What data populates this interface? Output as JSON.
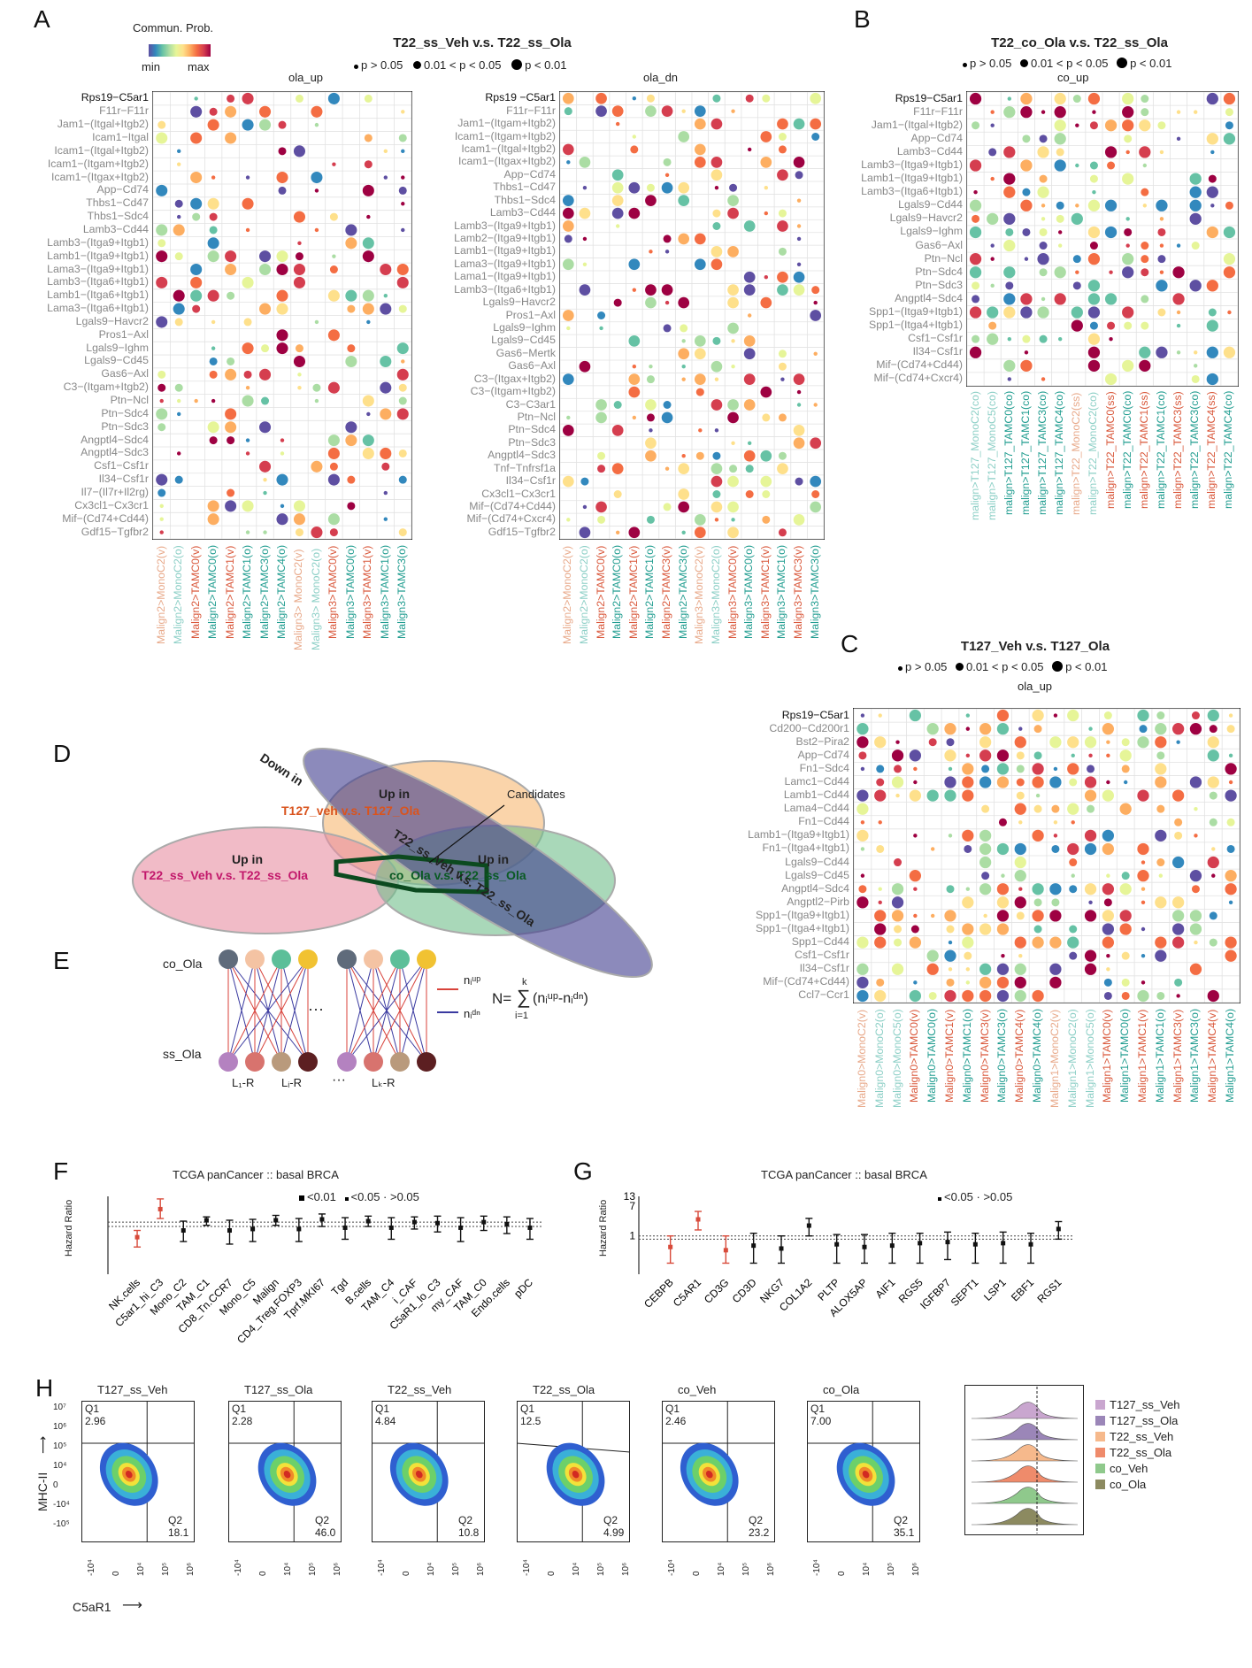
{
  "panels": {
    "A": {
      "label": "A",
      "title": "T22_ss_Veh v.s. T22_ss_Ola",
      "legend_pvals": [
        "p > 0.05",
        "0.01 < p < 0.05",
        "p < 0.01"
      ],
      "colorbar": {
        "title": "Commun. Prob.",
        "min_label": "min",
        "max_label": "max"
      },
      "left": {
        "subtitle": "ola_up",
        "rows": [
          "Rps19−C5ar1",
          "F11r−F11r",
          "Jam1−(Itgal+Itgb2)",
          "Icam1−Itgal",
          "Icam1−(Itgal+Itgb2)",
          "Icam1−(Itgam+Itgb2)",
          "Icam1−(Itgax+Itgb2)",
          "App−Cd74",
          "Thbs1−Cd47",
          "Thbs1−Sdc4",
          "Lamb3−Cd44",
          "Lamb3−(Itga9+Itgb1)",
          "Lamb1−(Itga9+Itgb1)",
          "Lama3−(Itga9+Itgb1)",
          "Lamb3−(Itga6+Itgb1)",
          "Lamb1−(Itga6+Itgb1)",
          "Lama3−(Itga6+Itgb1)",
          "Lgals9−Havcr2",
          "Pros1−Axl",
          "Lgals9−Ighm",
          "Lgals9−Cd45",
          "Gas6−Axl",
          "C3−(Itgam+Itgb2)",
          "Ptn−Ncl",
          "Ptn−Sdc4",
          "Ptn−Sdc3",
          "Angptl4−Sdc4",
          "Angptl4−Sdc3",
          "Csf1−Csf1r",
          "Il34−Csf1r",
          "Il7−(Il7r+Il2rg)",
          "Cx3cl1−Cx3cr1",
          "Mif−(Cd74+Cd44)",
          "Gdf15−Tgfbr2"
        ],
        "cols": [
          "Malign2>MonoC2(v)",
          "Malign2>MonoC2(o)",
          "Malign2>TAMC0(v)",
          "Malign2>TAMC0(o)",
          "Malign2>TAMC1(v)",
          "Malign2>TAMC1(o)",
          "Malign2>TAMC3(o)",
          "Malign2>TAMC4(o)",
          "Malign3> MonoC2(v)",
          "Malign3> MonoC2(o)",
          "Malign3>TAMC0(v)",
          "Malign3>TAMC0(o)",
          "Malign3>TAMC1(v)",
          "Malign3>TAMC1(o)",
          "Malign3>TAMC3(o)"
        ]
      },
      "right": {
        "subtitle": "ola_dn",
        "rows": [
          "Rps19 −C5ar1",
          "F11r−F11r",
          "Jam1−(Itgam+Itgb2)",
          "Icam1−(Itgam+Itgb2)",
          "Icam1−(Itgal+Itgb2)",
          "Icam1−(Itgax+Itgb2)",
          "App−Cd74",
          "Thbs1−Cd47",
          "Thbs1−Sdc4",
          "Lamb3−Cd44",
          "Lamb3−(Itga9+Itgb1)",
          "Lamb2−(Itga9+Itgb1)",
          "Lamb1−(Itga9+Itgb1)",
          "Lama3−(Itga9+Itgb1)",
          "Lama1−(Itga9+Itgb1)",
          "Lamb3−(Itga6+Itgb1)",
          "Lgals9−Havcr2",
          "Pros1−Axl",
          "Lgals9−Ighm",
          "Lgals9−Cd45",
          "Gas6−Mertk",
          "Gas6−Axl",
          "C3−(Itgax+Itgb2)",
          "C3−(Itgam+Itgb2)",
          "C3−C3ar1",
          "Ptn−Ncl",
          "Ptn−Sdc4",
          "Ptn−Sdc3",
          "Angptl4−Sdc3",
          "Tnf−Tnfrsf1a",
          "Il34−Csf1r",
          "Cx3cl1−Cx3cr1",
          "Mif−(Cd74+Cd44)",
          "Mif−(Cd74+Cxcr4)",
          "Gdf15−Tgfbr2"
        ],
        "cols": [
          "Malign2>MonoC2(v)",
          "Malign2>MonoC2(o)",
          "Malign2>TAMC0(v)",
          "Malign2>TAMC0(o)",
          "Malign2>TAMC1(v)",
          "Malign2>TAMC1(o)",
          "Malign2>TAMC3(v)",
          "Malign2>TAMC3(o)",
          "Malign3>MonoC2(v)",
          "Malign3>MonoC2(o)",
          "Malign3>TAMC0(v)",
          "Malign3>TAMC0(o)",
          "Malign3>TAMC1(v)",
          "Malign3>TAMC1(o)",
          "Malign3>TAMC3(v)",
          "Malign3>TAMC3(o)"
        ]
      }
    },
    "B": {
      "label": "B",
      "title": "T22_co_Ola v.s. T22_ss_Ola",
      "legend_pvals": [
        "p > 0.05",
        "0.01 < p < 0.05",
        "p < 0.01"
      ],
      "subtitle": "co_up",
      "rows": [
        "Rps19−C5ar1",
        "F11r−F11r",
        "Jam1−(Itgal+Itgb2)",
        "App−Cd74",
        "Lamb3−Cd44",
        "Lamb3−(Itga9+Itgb1)",
        "Lamb1−(Itga9+Itgb1)",
        "Lamb3−(Itga6+Itgb1)",
        "Lgals9−Cd44",
        "Lgals9−Havcr2",
        "Lgals9−Ighm",
        "Gas6−Axl",
        "Ptn−Ncl",
        "Ptn−Sdc4",
        "Ptn−Sdc3",
        "Angptl4−Sdc4",
        "Spp1−(Itga9+Itgb1)",
        "Spp1−(Itga4+Itgb1)",
        "Csf1−Csf1r",
        "Il34−Csf1r",
        "Mif−(Cd74+Cd44)",
        "Mif−(Cd74+Cxcr4)"
      ],
      "cols": [
        "malign>T127_MonoC2(co)",
        "malign>T127_MonoC5(co)",
        "malign>T127_TAMC0(co)",
        "malign>T127_TAMC1(co)",
        "malign>T127_TAMC3(co)",
        "malign>T127_TAMC4(co)",
        "malign>T22_MonoC2(ss)",
        "malign>T22_MonoC2(co)",
        "malign>T22_TAMC0(ss)",
        "malign>T22_TAMC0(co)",
        "malign>T22_TAMC1(ss)",
        "malign>T22_TAMC1(co)",
        "malign>T22_TAMC3(ss)",
        "malign>T22_TAMC3(co)",
        "malign>T22_TAMC4(ss)",
        "malign>T22_TAMC4(co)"
      ]
    },
    "C": {
      "label": "C",
      "title": "T127_Veh v.s. T127_Ola",
      "legend_pvals": [
        "p > 0.05",
        "0.01 < p < 0.05",
        "p < 0.01"
      ],
      "subtitle": "ola_up",
      "rows": [
        "Rps19−C5ar1",
        "Cd200−Cd200r1",
        "Bst2−Pira2",
        "App−Cd74",
        "Fn1−Sdc4",
        "Lamc1−Cd44",
        "Lamb1−Cd44",
        "Lama4−Cd44",
        "Fn1−Cd44",
        "Lamb1−(Itga9+Itgb1)",
        "Fn1−(Itga4+Itgb1)",
        "Lgals9−Cd44",
        "Lgals9−Cd45",
        "Angptl4−Sdc4",
        "Angptl2−Pirb",
        "Spp1−(Itga9+Itgb1)",
        "Spp1−(Itga4+Itgb1)",
        "Spp1−Cd44",
        "Csf1−Csf1r",
        "Il34−Csf1r",
        "Mif−(Cd74+Cd44)",
        "Ccl7−Ccr1"
      ],
      "cols": [
        "Malign0>MonoC2(v)",
        "Malign0>MonoC2(o)",
        "Malign0>MonoC5(o)",
        "Malign0>TAMC0(v)",
        "Malign0>TAMC0(o)",
        "Malign0>TAMC1(v)",
        "Malign0>TAMC1(o)",
        "Malign0>TAMC3(v)",
        "Malign0>TAMC3(o)",
        "Malign0>TAMC4(v)",
        "Malign0>TAMC4(o)",
        "Malign1>MonoC2(v)",
        "Malign1>MonoC2(o)",
        "Malign1>MonoC5(o)",
        "Malign1>TAMC0(v)",
        "Malign1>TAMC0(o)",
        "Malign1>TAMC1(v)",
        "Malign1>TAMC1(o)",
        "Malign1>TAMC3(v)",
        "Malign1>TAMC3(o)",
        "Malign1>TAMC4(v)",
        "Malign1>TAMC4(o)"
      ]
    },
    "D": {
      "label": "D",
      "ellipses": [
        {
          "name": "down-in-diag",
          "text1": "Down in",
          "color": "#3f3c8c"
        },
        {
          "name": "t127",
          "text1": "Up in",
          "text2": "T127_veh v.s. T127_Ola",
          "color": "#f5b56a",
          "text2_color": "#d9541e"
        },
        {
          "name": "t22",
          "text1": "Up in",
          "text2": "T22_ss_Veh v.s. T22_ss_Ola",
          "color": "#e98ea2",
          "text2_color": "#c2186b"
        },
        {
          "name": "co",
          "text1": "Up in",
          "text2": "co_Ola v.s. T22_ss_Ola",
          "color": "#72c08c",
          "text2_color": "#0a5a24"
        }
      ],
      "diag_text": "T22_ss_Veh v.s. T22_ss_Ola",
      "candidates_label": "Candidates"
    },
    "E": {
      "label": "E",
      "top_label": "co_Ola",
      "bottom_label": "ss_Ola",
      "top_colors": [
        "#5f6b7b",
        "#f4c3a3",
        "#5cbf99",
        "#f1c232"
      ],
      "bottom_colors": [
        "#b482c0",
        "#d8736e",
        "#b99a7c",
        "#5c1f21"
      ],
      "pair_labels": [
        "L₁-R",
        "Lᵢ-R",
        "Lₖ-R"
      ],
      "ellipsis": "···",
      "n_up": "nᵢᵘᵖ",
      "n_dn": "nᵢᵈⁿ",
      "formula_left": "N=",
      "formula_sum_top": "k",
      "formula_sum_bottom": "i=1",
      "formula_body": "(nᵢᵘᵖ-nᵢᵈⁿ)",
      "up_color": "#d8423a",
      "dn_color": "#3a3aa0"
    },
    "F": {
      "label": "F",
      "title": "TCGA panCancer :: basal BRCA",
      "ylabel": "Hazard Ratio",
      "legend": [
        "<0.01",
        "<0.05 · >0.05"
      ],
      "chart_data": {
        "type": "forest",
        "categories": [
          "NK.cells",
          "C5ar1_hi_C3",
          "Mono_C2",
          "TAM_C1",
          "CD8_Tn.CCR7",
          "Mono_C5",
          "Malign",
          "CD4_Treg.FOXP3",
          "Tprf.MKI67",
          "Tgd",
          "B.cells",
          "TAM_C4",
          "i_CAF",
          "C5aR1_lo_C3",
          "my_CAF",
          "TAM_C0",
          "Endo.cells",
          "pDC"
        ],
        "hr": [
          0.45,
          1.9,
          0.65,
          1.1,
          0.65,
          0.7,
          1.1,
          0.7,
          1.15,
          0.75,
          1.05,
          0.75,
          1.0,
          0.95,
          0.75,
          1.0,
          0.9,
          0.75
        ],
        "lo": [
          0.25,
          1.2,
          0.35,
          0.85,
          0.3,
          0.35,
          0.85,
          0.35,
          0.8,
          0.4,
          0.8,
          0.4,
          0.7,
          0.6,
          0.35,
          0.65,
          0.55,
          0.4
        ],
        "hi": [
          0.65,
          3.1,
          1.05,
          1.3,
          1.1,
          1.15,
          1.4,
          1.2,
          1.5,
          1.25,
          1.35,
          1.25,
          1.3,
          1.35,
          1.25,
          1.35,
          1.3,
          1.2
        ],
        "significant": [
          true,
          true,
          false,
          false,
          false,
          false,
          false,
          false,
          false,
          false,
          false,
          false,
          false,
          false,
          false,
          false,
          false,
          false
        ]
      }
    },
    "G": {
      "label": "G",
      "title": "TCGA panCancer :: basal BRCA",
      "ylabel": "Hazard Ratio",
      "ticks": [
        "13",
        "7",
        "1"
      ],
      "legend": [
        "<0.05 · >0.05"
      ],
      "chart_data": {
        "type": "forest",
        "categories": [
          "CEBPB",
          "C5AR1",
          "CD3G",
          "CD3D",
          "NKG7",
          "COL1A2",
          "PLTP",
          "ALOX5AP",
          "AIF1",
          "RGS5",
          "IGFBP7",
          "SEPT1",
          "LSP1",
          "EBF1",
          "RGS1"
        ],
        "hr": [
          0.45,
          3.0,
          0.35,
          0.5,
          0.4,
          2.0,
          0.55,
          0.45,
          0.5,
          0.6,
          0.65,
          0.55,
          0.6,
          0.55,
          1.6
        ],
        "lo": [
          0.1,
          1.5,
          0.1,
          0.1,
          0.1,
          1.0,
          0.1,
          0.1,
          0.1,
          0.1,
          0.15,
          0.1,
          0.1,
          0.1,
          0.8
        ],
        "hi": [
          1.0,
          5.0,
          1.0,
          1.2,
          1.0,
          3.2,
          1.1,
          1.1,
          1.2,
          1.2,
          1.3,
          1.2,
          1.3,
          1.2,
          2.6
        ],
        "significant": [
          true,
          true,
          true,
          false,
          false,
          false,
          false,
          false,
          false,
          false,
          false,
          false,
          false,
          false,
          false
        ]
      }
    },
    "H": {
      "label": "H",
      "ylabel": "MHC-II",
      "xlabel": "C5aR1",
      "yticks": [
        "10⁷",
        "10⁶",
        "10⁵",
        "10⁴",
        "0",
        "-10⁴",
        "-10⁵"
      ],
      "xticks": [
        "-10⁴",
        "0",
        "10⁴",
        "10⁵",
        "10⁶"
      ],
      "plots": [
        {
          "title": "T127_ss_Veh",
          "q1": "2.96",
          "q2": "18.1"
        },
        {
          "title": "T127_ss_Ola",
          "q1": "2.28",
          "q2": "46.0"
        },
        {
          "title": "T22_ss_Veh",
          "q1": "4.84",
          "q2": "10.8"
        },
        {
          "title": "T22_ss_Ola",
          "q1": "12.5",
          "q2": "4.99"
        },
        {
          "title": "co_Veh",
          "q1": "2.46",
          "q2": "23.2"
        },
        {
          "title": "co_Ola",
          "q1": "7.00",
          "q2": "35.1"
        }
      ],
      "q1_label": "Q1",
      "q2_label": "Q2",
      "histogram_legend": [
        {
          "name": "T127_ss_Veh",
          "color": "#c9a6cf"
        },
        {
          "name": "T127_ss_Ola",
          "color": "#9b86b8"
        },
        {
          "name": "T22_ss_Veh",
          "color": "#f6b98c"
        },
        {
          "name": "T22_ss_Ola",
          "color": "#ef8b6b"
        },
        {
          "name": "co_Veh",
          "color": "#8fc98c"
        },
        {
          "name": "co_Ola",
          "color": "#8c8a60"
        }
      ]
    }
  }
}
